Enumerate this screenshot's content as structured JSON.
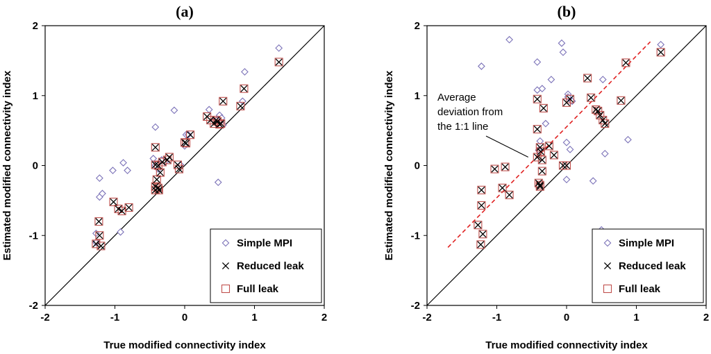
{
  "chart_data": [
    {
      "type": "scatter",
      "panel_label": "(a)",
      "xlabel": "True modified connectivity index",
      "ylabel": "Estimated modified connectivity index",
      "xlim": [
        -2,
        2
      ],
      "ylim": [
        -2,
        2
      ],
      "x_ticks": [
        "-2",
        "-1",
        "0",
        "1",
        "2"
      ],
      "y_ticks": [
        "-2",
        "-1",
        "0",
        "1",
        "2"
      ],
      "reference_line": "1:1",
      "legend": [
        "Simple MPI",
        "Reduced leak",
        "Full leak"
      ],
      "legend_position": "bottom-right",
      "series": [
        {
          "name": "Simple MPI",
          "marker": "diamond",
          "color": "#7b72b8",
          "x": [
            -1.22,
            -1.22,
            -1.18,
            -1.03,
            -0.88,
            -0.82,
            -1.27,
            -1.27,
            -0.92,
            -0.42,
            -0.45,
            -0.42,
            -0.38,
            -0.33,
            -0.28,
            -0.15,
            -0.06,
            0.02,
            0.0,
            0.05,
            0.35,
            0.42,
            0.47,
            0.5,
            0.53,
            0.55,
            0.48,
            0.83,
            0.86,
            1.35
          ],
          "y": [
            -0.18,
            -0.45,
            -0.4,
            -0.07,
            0.04,
            -0.07,
            -0.97,
            -1.1,
            -0.95,
            0.55,
            0.1,
            0.0,
            -0.05,
            0.08,
            0.05,
            0.79,
            0.01,
            0.44,
            0.28,
            0.44,
            0.8,
            0.64,
            0.66,
            0.72,
            0.68,
            0.58,
            -0.24,
            0.92,
            1.34,
            1.68
          ]
        },
        {
          "name": "Reduced leak",
          "marker": "x",
          "color": "#000000",
          "x": [
            -1.23,
            -1.27,
            -1.22,
            -1.2,
            -1.02,
            -0.95,
            -0.9,
            -0.8,
            -0.42,
            -0.42,
            -0.42,
            -0.38,
            -0.4,
            -0.35,
            -0.37,
            -0.32,
            -0.25,
            -0.22,
            -0.1,
            -0.08,
            0.0,
            0.02,
            0.08,
            0.32,
            0.37,
            0.42,
            0.45,
            0.47,
            0.5,
            0.52,
            0.55,
            0.8,
            0.85,
            1.35,
            -0.38,
            -0.42
          ],
          "y": [
            -0.8,
            -1.12,
            -1.0,
            -1.15,
            -0.52,
            -0.62,
            -0.65,
            -0.6,
            0.26,
            0.01,
            -0.35,
            -0.32,
            -0.2,
            -0.1,
            -0.35,
            0.05,
            0.08,
            0.12,
            0.01,
            -0.05,
            0.33,
            0.32,
            0.44,
            0.7,
            0.65,
            0.6,
            0.65,
            0.63,
            0.59,
            0.6,
            0.92,
            0.85,
            1.1,
            1.48,
            0.0,
            -0.3
          ]
        },
        {
          "name": "Full leak",
          "marker": "square",
          "color": "#c0504d",
          "x": [
            -1.23,
            -1.27,
            -1.22,
            -1.2,
            -1.02,
            -0.95,
            -0.9,
            -0.8,
            -0.42,
            -0.42,
            -0.42,
            -0.38,
            -0.4,
            -0.35,
            -0.37,
            -0.32,
            -0.25,
            -0.22,
            -0.1,
            -0.08,
            0.0,
            0.02,
            0.08,
            0.32,
            0.37,
            0.42,
            0.45,
            0.47,
            0.5,
            0.52,
            0.55,
            0.8,
            0.85,
            1.35,
            -0.38,
            -0.42
          ],
          "y": [
            -0.8,
            -1.12,
            -1.0,
            -1.15,
            -0.52,
            -0.62,
            -0.65,
            -0.6,
            0.26,
            0.01,
            -0.35,
            -0.32,
            -0.2,
            -0.1,
            -0.35,
            0.05,
            0.08,
            0.12,
            0.01,
            -0.05,
            0.33,
            0.32,
            0.44,
            0.7,
            0.65,
            0.6,
            0.65,
            0.63,
            0.59,
            0.6,
            0.92,
            0.85,
            1.1,
            1.48,
            0.0,
            -0.3
          ]
        }
      ]
    },
    {
      "type": "scatter",
      "panel_label": "(b)",
      "xlabel": "True modified connectivity index",
      "ylabel": "Estimated modified connectivity index",
      "xlim": [
        -2,
        2
      ],
      "ylim": [
        -2,
        2
      ],
      "x_ticks": [
        "-2",
        "-1",
        "0",
        "1",
        "2"
      ],
      "y_ticks": [
        "-2",
        "-1",
        "0",
        "1",
        "2"
      ],
      "reference_line": "1:1",
      "average_line": {
        "x": [
          -1.7,
          1.2
        ],
        "y": [
          -1.17,
          1.77
        ],
        "style": "dashed",
        "color": "#e02020"
      },
      "annotation": {
        "lines": [
          "Average",
          "deviation from",
          "the 1:1 line"
        ],
        "arrow_to": [
          -0.55,
          0.12
        ]
      },
      "legend": [
        "Simple MPI",
        "Reduced leak",
        "Full leak"
      ],
      "legend_position": "bottom-right",
      "series": [
        {
          "name": "Simple MPI",
          "marker": "diamond",
          "color": "#7b72b8",
          "x": [
            -1.22,
            -0.82,
            -0.42,
            -0.42,
            -0.35,
            -0.22,
            -0.07,
            -0.05,
            0.02,
            0.02,
            0.08,
            0.52,
            0.55,
            0.88,
            -0.3,
            -0.38,
            0.5,
            0.0,
            0.0,
            -0.4,
            0.38,
            0.05,
            1.35
          ],
          "y": [
            1.42,
            1.8,
            1.48,
            1.08,
            1.1,
            1.23,
            1.75,
            1.62,
            1.02,
            0.98,
            0.92,
            1.23,
            0.17,
            0.37,
            0.6,
            0.35,
            -0.92,
            -0.2,
            0.33,
            0.22,
            -0.22,
            0.23,
            1.73
          ]
        },
        {
          "name": "Reduced leak",
          "marker": "x",
          "color": "#000000",
          "x": [
            -1.22,
            -1.22,
            -1.27,
            -1.2,
            -1.23,
            -1.03,
            -0.92,
            -0.88,
            -0.82,
            -0.42,
            -0.42,
            -0.38,
            -0.37,
            -0.35,
            -0.33,
            -0.4,
            -0.38,
            -0.35,
            -0.25,
            -0.18,
            -0.05,
            0.0,
            0.0,
            0.05,
            0.3,
            0.35,
            0.42,
            0.45,
            0.48,
            0.52,
            0.55,
            0.78,
            0.85,
            1.35,
            -0.42,
            -0.38
          ],
          "y": [
            -0.35,
            -0.57,
            -0.85,
            -0.98,
            -1.13,
            -0.05,
            -0.32,
            -0.02,
            -0.42,
            0.95,
            0.52,
            0.26,
            0.2,
            0.08,
            0.82,
            -0.25,
            -0.28,
            -0.08,
            0.28,
            0.15,
            0.0,
            0.0,
            0.9,
            0.95,
            1.25,
            0.97,
            0.8,
            0.78,
            0.72,
            0.65,
            0.6,
            0.93,
            1.47,
            1.62,
            0.12,
            -0.3
          ]
        },
        {
          "name": "Full leak",
          "marker": "square",
          "color": "#c0504d",
          "x": [
            -1.22,
            -1.22,
            -1.27,
            -1.2,
            -1.23,
            -1.03,
            -0.92,
            -0.88,
            -0.82,
            -0.42,
            -0.42,
            -0.38,
            -0.37,
            -0.35,
            -0.33,
            -0.4,
            -0.38,
            -0.35,
            -0.25,
            -0.18,
            -0.05,
            0.0,
            0.0,
            0.05,
            0.3,
            0.35,
            0.42,
            0.45,
            0.48,
            0.52,
            0.55,
            0.78,
            0.85,
            1.35,
            -0.42,
            -0.38
          ],
          "y": [
            -0.35,
            -0.57,
            -0.85,
            -0.98,
            -1.13,
            -0.05,
            -0.32,
            -0.02,
            -0.42,
            0.95,
            0.52,
            0.26,
            0.2,
            0.08,
            0.82,
            -0.25,
            -0.28,
            -0.08,
            0.28,
            0.15,
            0.0,
            0.0,
            0.9,
            0.95,
            1.25,
            0.97,
            0.8,
            0.78,
            0.72,
            0.65,
            0.6,
            0.93,
            1.47,
            1.62,
            0.12,
            -0.3
          ]
        }
      ]
    }
  ]
}
